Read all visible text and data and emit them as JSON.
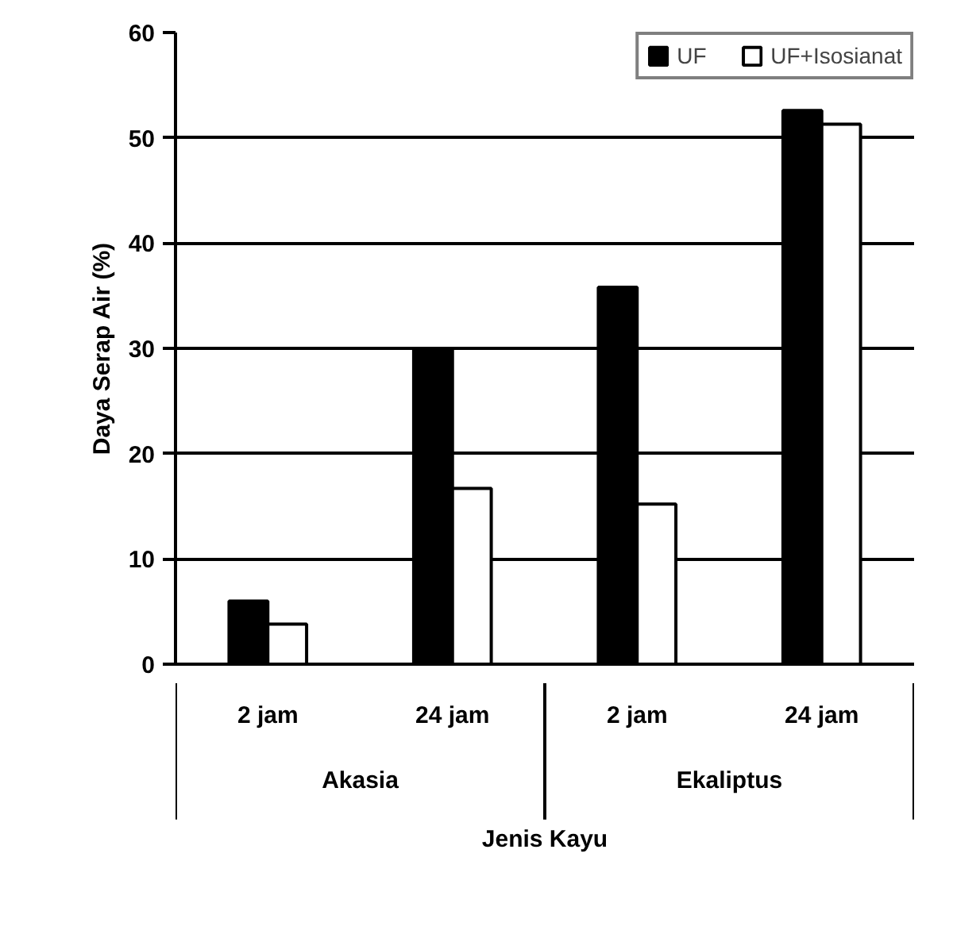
{
  "chart_data": {
    "type": "bar",
    "xlabel": "Jenis Kayu",
    "ylabel": "Daya Serap Air (%)",
    "categories": [
      "2 jam",
      "24 jam",
      "2 jam",
      "24 jam"
    ],
    "annotations": [
      "Akasia",
      "Ekaliptus"
    ],
    "series": [
      {
        "name": "UF",
        "color": "#000000",
        "values": [
          6.0,
          30.0,
          35.8,
          52.6
        ]
      },
      {
        "name": "UF+Isosianat",
        "color": "#ffffff",
        "values": [
          3.8,
          16.7,
          15.2,
          51.3
        ]
      }
    ],
    "ylim": [
      0,
      60
    ],
    "yticks": [
      0,
      10,
      20,
      30,
      40,
      50,
      60
    ],
    "grid": "y",
    "legend": "top right"
  }
}
